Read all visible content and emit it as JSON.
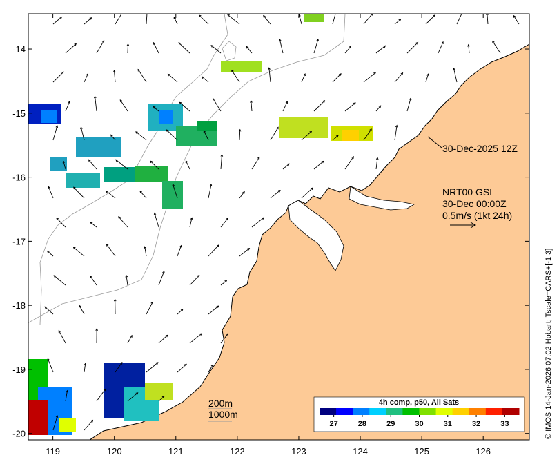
{
  "map": {
    "lon_range": [
      118.6,
      126.75
    ],
    "lat_range": [
      -20.1,
      -13.45
    ],
    "x_ticks": [
      "119",
      "120",
      "121",
      "122",
      "123",
      "124",
      "125",
      "126"
    ],
    "y_ticks": [
      "-14",
      "-15",
      "-16",
      "-17",
      "-18",
      "-19",
      "-20"
    ],
    "colors": {
      "land": "#fdca96",
      "coast": "#000000",
      "isobath": "#999999",
      "arrow": "#000000"
    }
  },
  "annotations": {
    "glider_time": "30-Dec-2025 12Z",
    "product": "NRT00 GSL",
    "valid_time": "30-Dec 00:00Z",
    "scale_label": "0.5m/s (1kt 24h)",
    "isobath_200": "200m",
    "isobath_1000": "1000m"
  },
  "colorbar": {
    "title": "4h comp, p50, All Sats",
    "ticks": [
      "27",
      "28",
      "29",
      "30",
      "31",
      "32",
      "33"
    ],
    "range": [
      26.5,
      33.5
    ],
    "colors": [
      "#00007f",
      "#0000ff",
      "#0080ff",
      "#00d0ff",
      "#20c080",
      "#00c000",
      "#80e000",
      "#e0ff00",
      "#ffd000",
      "#ff8000",
      "#ff2000",
      "#b00000"
    ]
  },
  "credit": "© IMOS 14-Jan-2026 07:02 Hobart; Tscale=CARS+[-1 3]"
}
